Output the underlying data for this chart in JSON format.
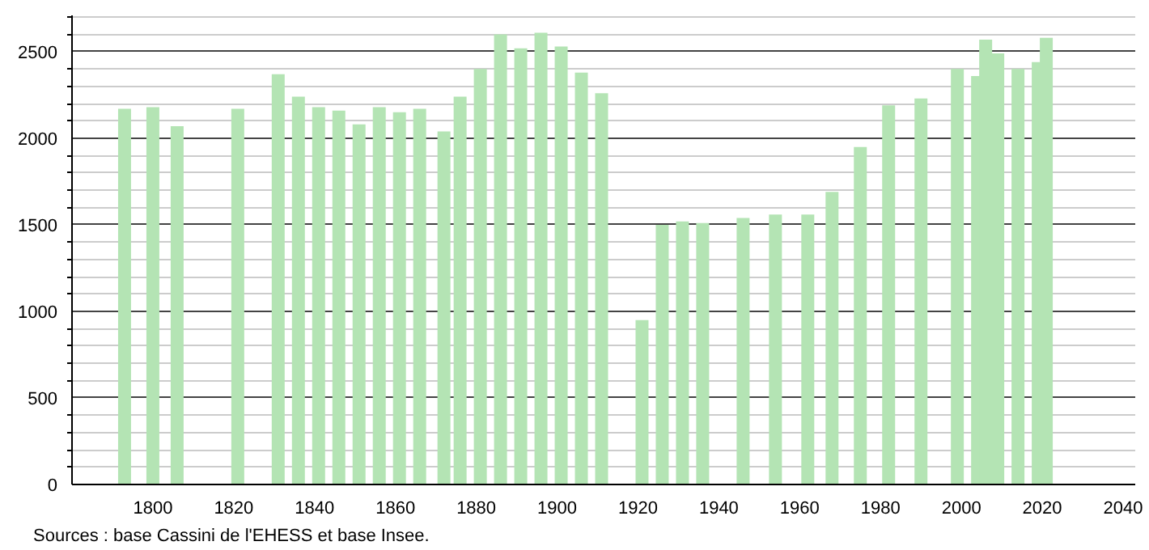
{
  "chart_data": {
    "type": "bar",
    "x": [
      1793,
      1800,
      1806,
      1821,
      1831,
      1836,
      1841,
      1846,
      1851,
      1856,
      1861,
      1866,
      1872,
      1876,
      1881,
      1886,
      1891,
      1896,
      1901,
      1906,
      1911,
      1921,
      1926,
      1931,
      1936,
      1946,
      1954,
      1962,
      1968,
      1975,
      1982,
      1990,
      1999,
      2004,
      2006,
      2009,
      2014,
      2019,
      2021
    ],
    "values": [
      2170,
      2180,
      2070,
      2170,
      2370,
      2240,
      2180,
      2160,
      2080,
      2180,
      2150,
      2170,
      2040,
      2240,
      2400,
      2600,
      2520,
      2610,
      2530,
      2380,
      2260,
      950,
      1500,
      1520,
      1510,
      1540,
      1560,
      1560,
      1690,
      1950,
      2190,
      2230,
      2400,
      2360,
      2570,
      2490,
      2400,
      2440,
      2580
    ],
    "color": "#b4e4b4",
    "xlim": [
      1780,
      2043
    ],
    "xticks": [
      1800,
      1820,
      1840,
      1860,
      1880,
      1900,
      1920,
      1940,
      1960,
      1980,
      2000,
      2020,
      2040
    ],
    "ylim": [
      0,
      2710
    ],
    "yticks": [
      0,
      {
        "value": 100,
        "label": null
      },
      {
        "value": 200,
        "label": null
      },
      {
        "value": 300,
        "label": null
      },
      {
        "value": 400,
        "label": null
      },
      500,
      {
        "value": 600,
        "label": null
      },
      {
        "value": 700,
        "label": null
      },
      {
        "value": 800,
        "label": null
      },
      {
        "value": 900,
        "label": null
      },
      1000,
      {
        "value": 1100,
        "label": null
      },
      {
        "value": 1200,
        "label": null
      },
      {
        "value": 1300,
        "label": null
      },
      {
        "value": 1400,
        "label": null
      },
      1500,
      {
        "value": 1600,
        "label": null
      },
      {
        "value": 1700,
        "label": null
      },
      {
        "value": 1800,
        "label": null
      },
      {
        "value": 1900,
        "label": null
      },
      2000,
      {
        "value": 2100,
        "label": null
      },
      {
        "value": 2200,
        "label": null
      },
      {
        "value": 2300,
        "label": null
      },
      {
        "value": 2400,
        "label": null
      },
      2500,
      {
        "value": 2600,
        "label": null
      },
      {
        "value": 2700,
        "label": null
      }
    ],
    "grid": "y",
    "annotations": [
      "Sources : base Cassini de l'EHESS et base Insee."
    ]
  }
}
